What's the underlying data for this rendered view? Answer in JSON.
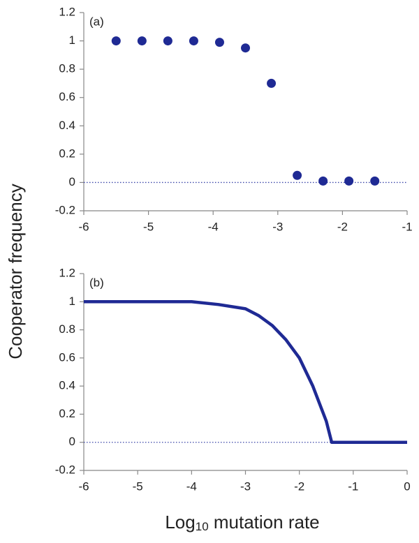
{
  "chart_data": [
    {
      "type": "scatter",
      "panel_label": "(a)",
      "color": "#1f2a94",
      "x": [
        -5.5,
        -5.1,
        -4.7,
        -4.3,
        -3.9,
        -3.5,
        -3.1,
        -2.7,
        -2.3,
        -1.9,
        -1.5
      ],
      "values": [
        1,
        1,
        1,
        1,
        0.99,
        0.95,
        0.7,
        0.05,
        0.01,
        0.01,
        0.01
      ],
      "xlim": [
        -6,
        -1
      ],
      "xticks": [
        -6,
        -5,
        -4,
        -3,
        -2,
        -1
      ],
      "ylim": [
        -0.2,
        1.2
      ],
      "yticks": [
        -0.2,
        0,
        0.2,
        0.4,
        0.6,
        0.8,
        1,
        1.2
      ],
      "reference_line": 0
    },
    {
      "type": "line",
      "panel_label": "(b)",
      "color": "#1f2a94",
      "x": [
        -6,
        -5,
        -4,
        -3.5,
        -3,
        -2.75,
        -2.5,
        -2.25,
        -2,
        -1.75,
        -1.5,
        -1.4,
        -1,
        0
      ],
      "values": [
        1,
        1,
        1,
        0.98,
        0.95,
        0.9,
        0.83,
        0.73,
        0.6,
        0.4,
        0.15,
        0,
        0,
        0
      ],
      "xlim": [
        -6,
        0
      ],
      "xticks": [
        -6,
        -5,
        -4,
        -3,
        -2,
        -1,
        0
      ],
      "ylim": [
        -0.2,
        1.2
      ],
      "yticks": [
        -0.2,
        0,
        0.2,
        0.4,
        0.6,
        0.8,
        1,
        1.2
      ],
      "reference_line": 0
    }
  ],
  "ylabel": "Cooperator frequency",
  "xlabel": {
    "base": "Log",
    "subscript": "10",
    "rest": " mutation rate"
  }
}
